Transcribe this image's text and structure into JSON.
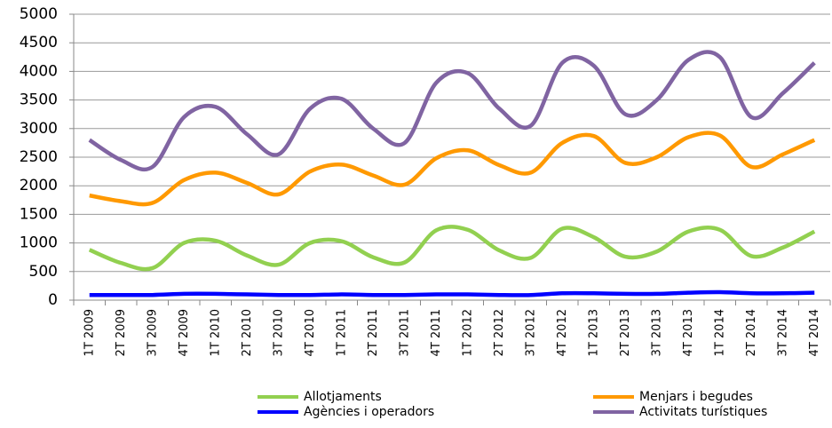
{
  "chart_data": {
    "type": "line",
    "categories": [
      "1T 2009",
      "2T 2009",
      "3T 2009",
      "4T 2009",
      "1T 2010",
      "2T 2010",
      "3T 2010",
      "4T 2010",
      "1T 2011",
      "2T 2011",
      "3T 2011",
      "4T 2011",
      "1T 2012",
      "2T 2012",
      "3T 2012",
      "4T 2012",
      "1T 2013",
      "2T 2013",
      "3T 2013",
      "4T 2013",
      "1T 2014",
      "2T 2014",
      "3T 2014",
      "4T 2014"
    ],
    "series": [
      {
        "name": "Allotjaments",
        "color": "#92d050",
        "values": [
          880,
          650,
          560,
          1000,
          1040,
          780,
          620,
          1000,
          1030,
          750,
          660,
          1220,
          1230,
          870,
          740,
          1250,
          1100,
          760,
          850,
          1200,
          1230,
          770,
          920,
          1200
        ]
      },
      {
        "name": "Menjars i begudes",
        "color": "#ff9900",
        "values": [
          1830,
          1730,
          1700,
          2100,
          2230,
          2050,
          1850,
          2250,
          2370,
          2180,
          2020,
          2480,
          2620,
          2360,
          2230,
          2750,
          2870,
          2400,
          2500,
          2850,
          2880,
          2330,
          2550,
          2800
        ]
      },
      {
        "name": "Agències i operadors",
        "color": "#0000ff",
        "values": [
          90,
          90,
          90,
          110,
          110,
          100,
          90,
          90,
          100,
          90,
          90,
          100,
          100,
          90,
          90,
          120,
          120,
          110,
          110,
          130,
          140,
          120,
          120,
          130
        ]
      },
      {
        "name": "Activitats turístiques",
        "color": "#8064a2",
        "values": [
          2800,
          2450,
          2330,
          3200,
          3380,
          2900,
          2550,
          3350,
          3520,
          3000,
          2750,
          3800,
          3970,
          3350,
          3050,
          4150,
          4100,
          3250,
          3500,
          4200,
          4250,
          3200,
          3620,
          4150
        ]
      }
    ],
    "ylim": [
      0,
      5000
    ],
    "yticks": [
      0,
      500,
      1000,
      1500,
      2000,
      2500,
      3000,
      3500,
      4000,
      4500,
      5000
    ],
    "grid": true,
    "legend": "bottom"
  }
}
